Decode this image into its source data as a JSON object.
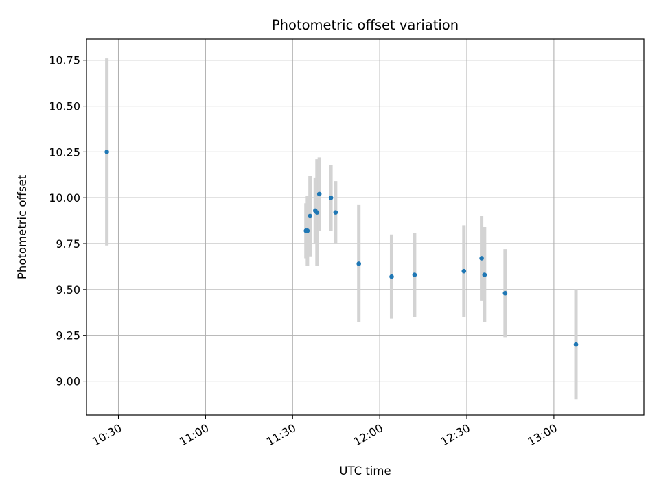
{
  "chart_data": {
    "type": "scatter",
    "title": "Photometric offset variation",
    "xlabel": "UTC time",
    "ylabel": "Photometric offset",
    "x_type": "time",
    "xlim": [
      "10:19",
      "13:31"
    ],
    "ylim": [
      8.815,
      10.865
    ],
    "x_ticks": [
      "10:30",
      "11:00",
      "11:30",
      "12:00",
      "12:30",
      "13:00"
    ],
    "y_ticks": [
      9.0,
      9.25,
      9.5,
      9.75,
      10.0,
      10.25,
      10.5,
      10.75
    ],
    "grid": true,
    "marker_color": "#1f77b4",
    "errorbar_color": "#d3d3d3",
    "series": [
      {
        "points": [
          {
            "t": "10:26:00",
            "y": 10.25,
            "err": 0.51
          },
          {
            "t": "11:34:36",
            "y": 9.82,
            "err": 0.15
          },
          {
            "t": "11:35:06",
            "y": 9.82,
            "err": 0.19
          },
          {
            "t": "11:36:00",
            "y": 9.9,
            "err": 0.22
          },
          {
            "t": "11:37:48",
            "y": 9.93,
            "err": 0.18
          },
          {
            "t": "11:38:24",
            "y": 9.92,
            "err": 0.29
          },
          {
            "t": "11:39:12",
            "y": 10.02,
            "err": 0.2
          },
          {
            "t": "11:43:12",
            "y": 10.0,
            "err": 0.18
          },
          {
            "t": "11:44:48",
            "y": 9.92,
            "err": 0.17
          },
          {
            "t": "11:52:48",
            "y": 9.64,
            "err": 0.32
          },
          {
            "t": "12:04:06",
            "y": 9.57,
            "err": 0.23
          },
          {
            "t": "12:12:00",
            "y": 9.58,
            "err": 0.23
          },
          {
            "t": "12:29:00",
            "y": 9.6,
            "err": 0.25
          },
          {
            "t": "12:35:06",
            "y": 9.67,
            "err": 0.23
          },
          {
            "t": "12:36:06",
            "y": 9.58,
            "err": 0.26
          },
          {
            "t": "12:43:12",
            "y": 9.48,
            "err": 0.24
          },
          {
            "t": "13:07:36",
            "y": 9.2,
            "err": 0.3
          }
        ]
      }
    ]
  }
}
